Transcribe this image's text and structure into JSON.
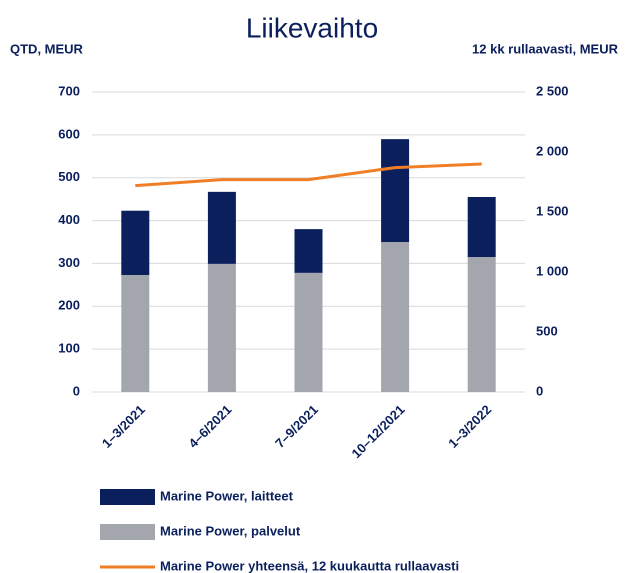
{
  "chart_data": {
    "type": "bar",
    "title": "Liikevaihto",
    "y_label": "QTD, MEUR",
    "y2_label": "12 kk rullaavasti, MEUR",
    "categories": [
      "1–3/2021",
      "4–6/2021",
      "7–9/2021",
      "10–12/2021",
      "1–3/2022"
    ],
    "series": [
      {
        "name": "Marine Power, laitteet",
        "color": "#0a1f5c",
        "type": "bar",
        "values": [
          150,
          168,
          102,
          240,
          140
        ]
      },
      {
        "name": "Marine Power, palvelut",
        "color": "#a3a6ad",
        "type": "bar",
        "values": [
          273,
          299,
          278,
          350,
          315
        ]
      },
      {
        "name": "Marine Power yhteensä, 12 kuukautta rullaavasti",
        "color": "#f07e26",
        "type": "line",
        "axis": "y2",
        "values": [
          1720,
          1770,
          1770,
          1870,
          1900
        ]
      }
    ],
    "stacked": true,
    "ylim": [
      0,
      700
    ],
    "yticks": [
      0,
      100,
      200,
      300,
      400,
      500,
      600,
      700
    ],
    "y2lim": [
      0,
      2500
    ],
    "y2ticks": [
      0,
      500,
      {
        "value": 1000,
        "label": "1 000"
      },
      {
        "value": 1500,
        "label": "1 500"
      },
      {
        "value": 2000,
        "label": "2 000"
      },
      {
        "value": 2500,
        "label": "2 500"
      }
    ],
    "grid": true,
    "legend": "bottom"
  }
}
